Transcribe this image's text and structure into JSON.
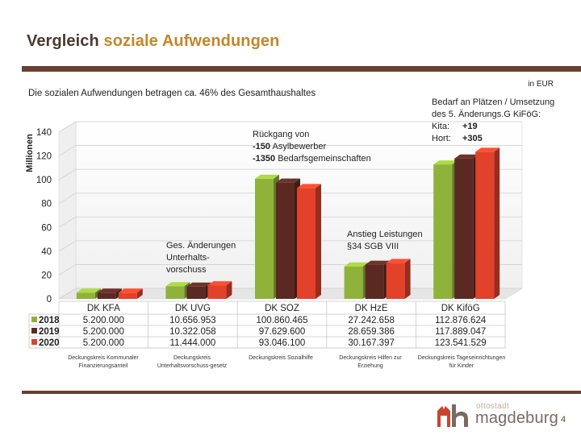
{
  "header": {
    "title_part1": "Vergleich ",
    "title_part2": "soziale Aufwendungen"
  },
  "subtitle": "Die sozialen Aufwendungen betragen ca. 46% des Gesamthaushaltes",
  "unit_label": "in EUR",
  "annotations": {
    "soz": {
      "line1": "Rückgang von",
      "line2_val": "-150",
      "line2_txt": " Asylbewerber",
      "line3_val": "-1350",
      "line3_txt": " Bedarfsgemeinschaften"
    },
    "uvg": {
      "line1": "Ges. Änderungen",
      "line2": "Unterhalts-",
      "line3": "vorschuss"
    },
    "hze": {
      "line1": "Anstieg Leistungen",
      "line2": "§34 SGB VIII"
    },
    "kifog": {
      "line1": "Bedarf an Plätzen / Umsetzung",
      "line2": "des 5. Änderungs.G KiFöG:",
      "kita_label": "Kita:",
      "kita_val": "+19",
      "hort_label": "Hort:",
      "hort_val": "+305"
    }
  },
  "descriptions": [
    "Deckungskreis Kommunaler Finanzierungsanteil",
    "Deckungskreis Unterhaltsvorschuss-gesetz",
    "Deckungskreis Sozialhilfe",
    "Deckungskreis Hilfen zur Erziehung",
    "Deckungskreis Tageseinrichtungen für Kinder"
  ],
  "footer": {
    "logo_small": "ottostadt",
    "logo_big": "magdeburg",
    "page_number": "4"
  },
  "chart_data": {
    "type": "bar",
    "title": "",
    "ylabel": "Millionen",
    "ylim": [
      0,
      140
    ],
    "yticks": [
      0,
      20,
      40,
      60,
      80,
      100,
      120,
      140
    ],
    "categories": [
      "DK KFA",
      "DK UVG",
      "DK SOZ",
      "DK HzE",
      "DK KiföG"
    ],
    "series": [
      {
        "name": "2018",
        "color": "#8fb33a",
        "values": [
          5.2,
          10.656953,
          100.860465,
          27.242658,
          112.876624
        ],
        "labels": [
          "5.200.000",
          "10.656.953",
          "100.860.465",
          "27.242.658",
          "112.876.624"
        ]
      },
      {
        "name": "2019",
        "color": "#5a2a22",
        "values": [
          5.2,
          10.322058,
          97.6296,
          28.659386,
          117.889047
        ],
        "labels": [
          "5.200.000",
          "10.322.058",
          "97.629.600",
          "28.659.386",
          "117.889.047"
        ]
      },
      {
        "name": "2020",
        "color": "#e2412a",
        "values": [
          5.2,
          11.444,
          93.0461,
          30.167397,
          123.541529
        ],
        "labels": [
          "5.200.000",
          "11.444.000",
          "93.046.100",
          "30.167.397",
          "123.541.529"
        ]
      }
    ]
  }
}
